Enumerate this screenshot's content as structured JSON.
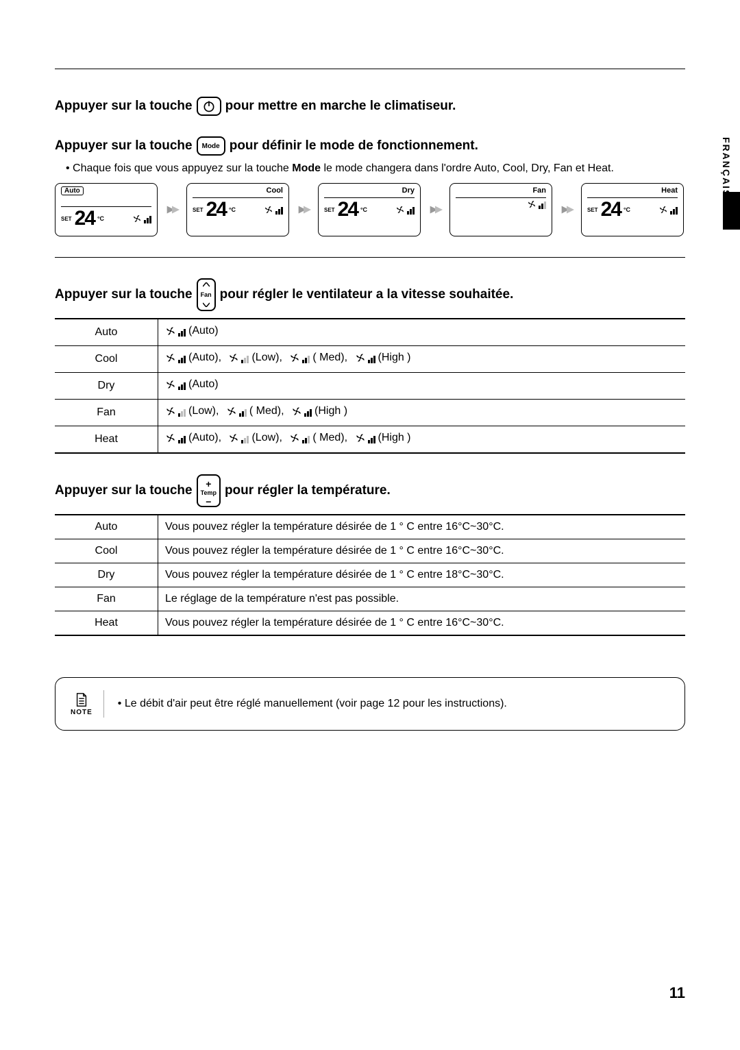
{
  "lang_side": "FRANÇAIS",
  "page_number": "11",
  "s1": {
    "pre": "Appuyer sur la touche",
    "post": "pour mettre en marche le climatiseur."
  },
  "s2": {
    "pre": "Appuyer sur la touche",
    "btn": "Mode",
    "post": "pour définir le mode de fonctionnement.",
    "bullet_pre": "Chaque fois que vous appuyez sur la touche ",
    "bullet_bold": "Mode",
    "bullet_post": " le mode changera dans l'ordre Auto, Cool, Dry, Fan et Heat.",
    "modes": [
      {
        "label": "Auto",
        "chip": true,
        "set": "SET",
        "temp": "24",
        "unit": "°C",
        "bars": [
          1,
          1,
          1
        ]
      },
      {
        "label": "Cool",
        "chip": false,
        "set": "SET",
        "temp": "24",
        "unit": "°C",
        "bars": [
          1,
          1,
          1
        ]
      },
      {
        "label": "Dry",
        "chip": false,
        "set": "SET",
        "temp": "24",
        "unit": "°C",
        "bars": [
          1,
          1,
          1
        ]
      },
      {
        "label": "Fan",
        "chip": false,
        "set": "",
        "temp": "",
        "unit": "",
        "bars": [
          1,
          1,
          0
        ]
      },
      {
        "label": "Heat",
        "chip": false,
        "set": "SET",
        "temp": "24",
        "unit": "°C",
        "bars": [
          1,
          1,
          1
        ]
      }
    ]
  },
  "s3": {
    "pre": "Appuyer sur la touche",
    "btn": "Fan",
    "post": "pour régler le ventilateur a la vitesse souhaitée.",
    "rows": [
      {
        "mode": "Auto",
        "opts": [
          {
            "bars": [
              1,
              1,
              1
            ],
            "label": "(Auto)"
          }
        ]
      },
      {
        "mode": "Cool",
        "opts": [
          {
            "bars": [
              1,
              1,
              1
            ],
            "label": "(Auto),"
          },
          {
            "bars": [
              1,
              0,
              0
            ],
            "label": "(Low),"
          },
          {
            "bars": [
              1,
              1,
              0
            ],
            "label": "( Med),"
          },
          {
            "bars": [
              1,
              1,
              1
            ],
            "label": "(High )"
          }
        ]
      },
      {
        "mode": "Dry",
        "opts": [
          {
            "bars": [
              1,
              1,
              1
            ],
            "label": "(Auto)"
          }
        ]
      },
      {
        "mode": "Fan",
        "opts": [
          {
            "bars": [
              1,
              0,
              0
            ],
            "label": "(Low),"
          },
          {
            "bars": [
              1,
              1,
              0
            ],
            "label": "( Med),"
          },
          {
            "bars": [
              1,
              1,
              1
            ],
            "label": "(High )"
          }
        ]
      },
      {
        "mode": "Heat",
        "opts": [
          {
            "bars": [
              1,
              1,
              1
            ],
            "label": "(Auto),"
          },
          {
            "bars": [
              1,
              0,
              0
            ],
            "label": "(Low),"
          },
          {
            "bars": [
              1,
              1,
              0
            ],
            "label": "( Med),"
          },
          {
            "bars": [
              1,
              1,
              1
            ],
            "label": "(High )"
          }
        ]
      }
    ]
  },
  "s4": {
    "pre": "Appuyer sur la touche",
    "btn": "Temp",
    "post": "pour régler la température.",
    "rows": [
      {
        "mode": "Auto",
        "text": "Vous pouvez régler la température désirée de 1 ° C entre 16°C~30°C."
      },
      {
        "mode": "Cool",
        "text": "Vous pouvez régler la température désirée de 1 ° C entre 16°C~30°C."
      },
      {
        "mode": "Dry",
        "text": "Vous pouvez régler la température désirée de 1 ° C entre 18°C~30°C."
      },
      {
        "mode": "Fan",
        "text": "Le réglage de la température n'est pas possible."
      },
      {
        "mode": "Heat",
        "text": "Vous pouvez régler la température désirée de 1 ° C entre 16°C~30°C."
      }
    ]
  },
  "note": {
    "label": "NOTE",
    "text": "Le débit d'air peut être réglé manuellement (voir page 12 pour les instructions)."
  }
}
